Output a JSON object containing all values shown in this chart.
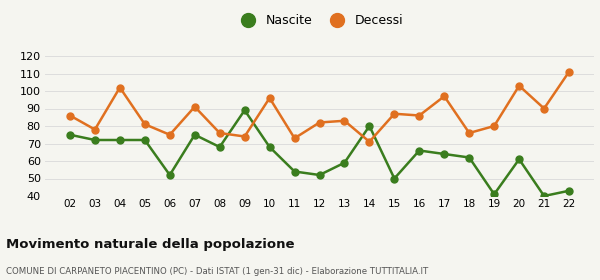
{
  "years": [
    "02",
    "03",
    "04",
    "05",
    "06",
    "07",
    "08",
    "09",
    "10",
    "11",
    "12",
    "13",
    "14",
    "15",
    "16",
    "17",
    "18",
    "19",
    "20",
    "21",
    "22"
  ],
  "nascite": [
    75,
    72,
    72,
    72,
    52,
    75,
    68,
    89,
    68,
    54,
    52,
    59,
    80,
    50,
    66,
    64,
    62,
    41,
    61,
    40,
    43
  ],
  "decessi": [
    86,
    78,
    102,
    81,
    75,
    91,
    76,
    74,
    96,
    73,
    82,
    83,
    71,
    87,
    86,
    97,
    76,
    80,
    103,
    90,
    111
  ],
  "nascite_color": "#3a7d1e",
  "decessi_color": "#e07020",
  "marker_size": 5,
  "linewidth": 1.8,
  "ylim": [
    40,
    120
  ],
  "yticks": [
    40,
    50,
    60,
    70,
    80,
    90,
    100,
    110,
    120
  ],
  "legend_nascite": "Nascite",
  "legend_decessi": "Decessi",
  "title": "Movimento naturale della popolazione",
  "subtitle": "COMUNE DI CARPANETO PIACENTINO (PC) - Dati ISTAT (1 gen-31 dic) - Elaborazione TUTTITALIA.IT",
  "bg_color": "#f5f5f0",
  "grid_color": "#dddddd"
}
